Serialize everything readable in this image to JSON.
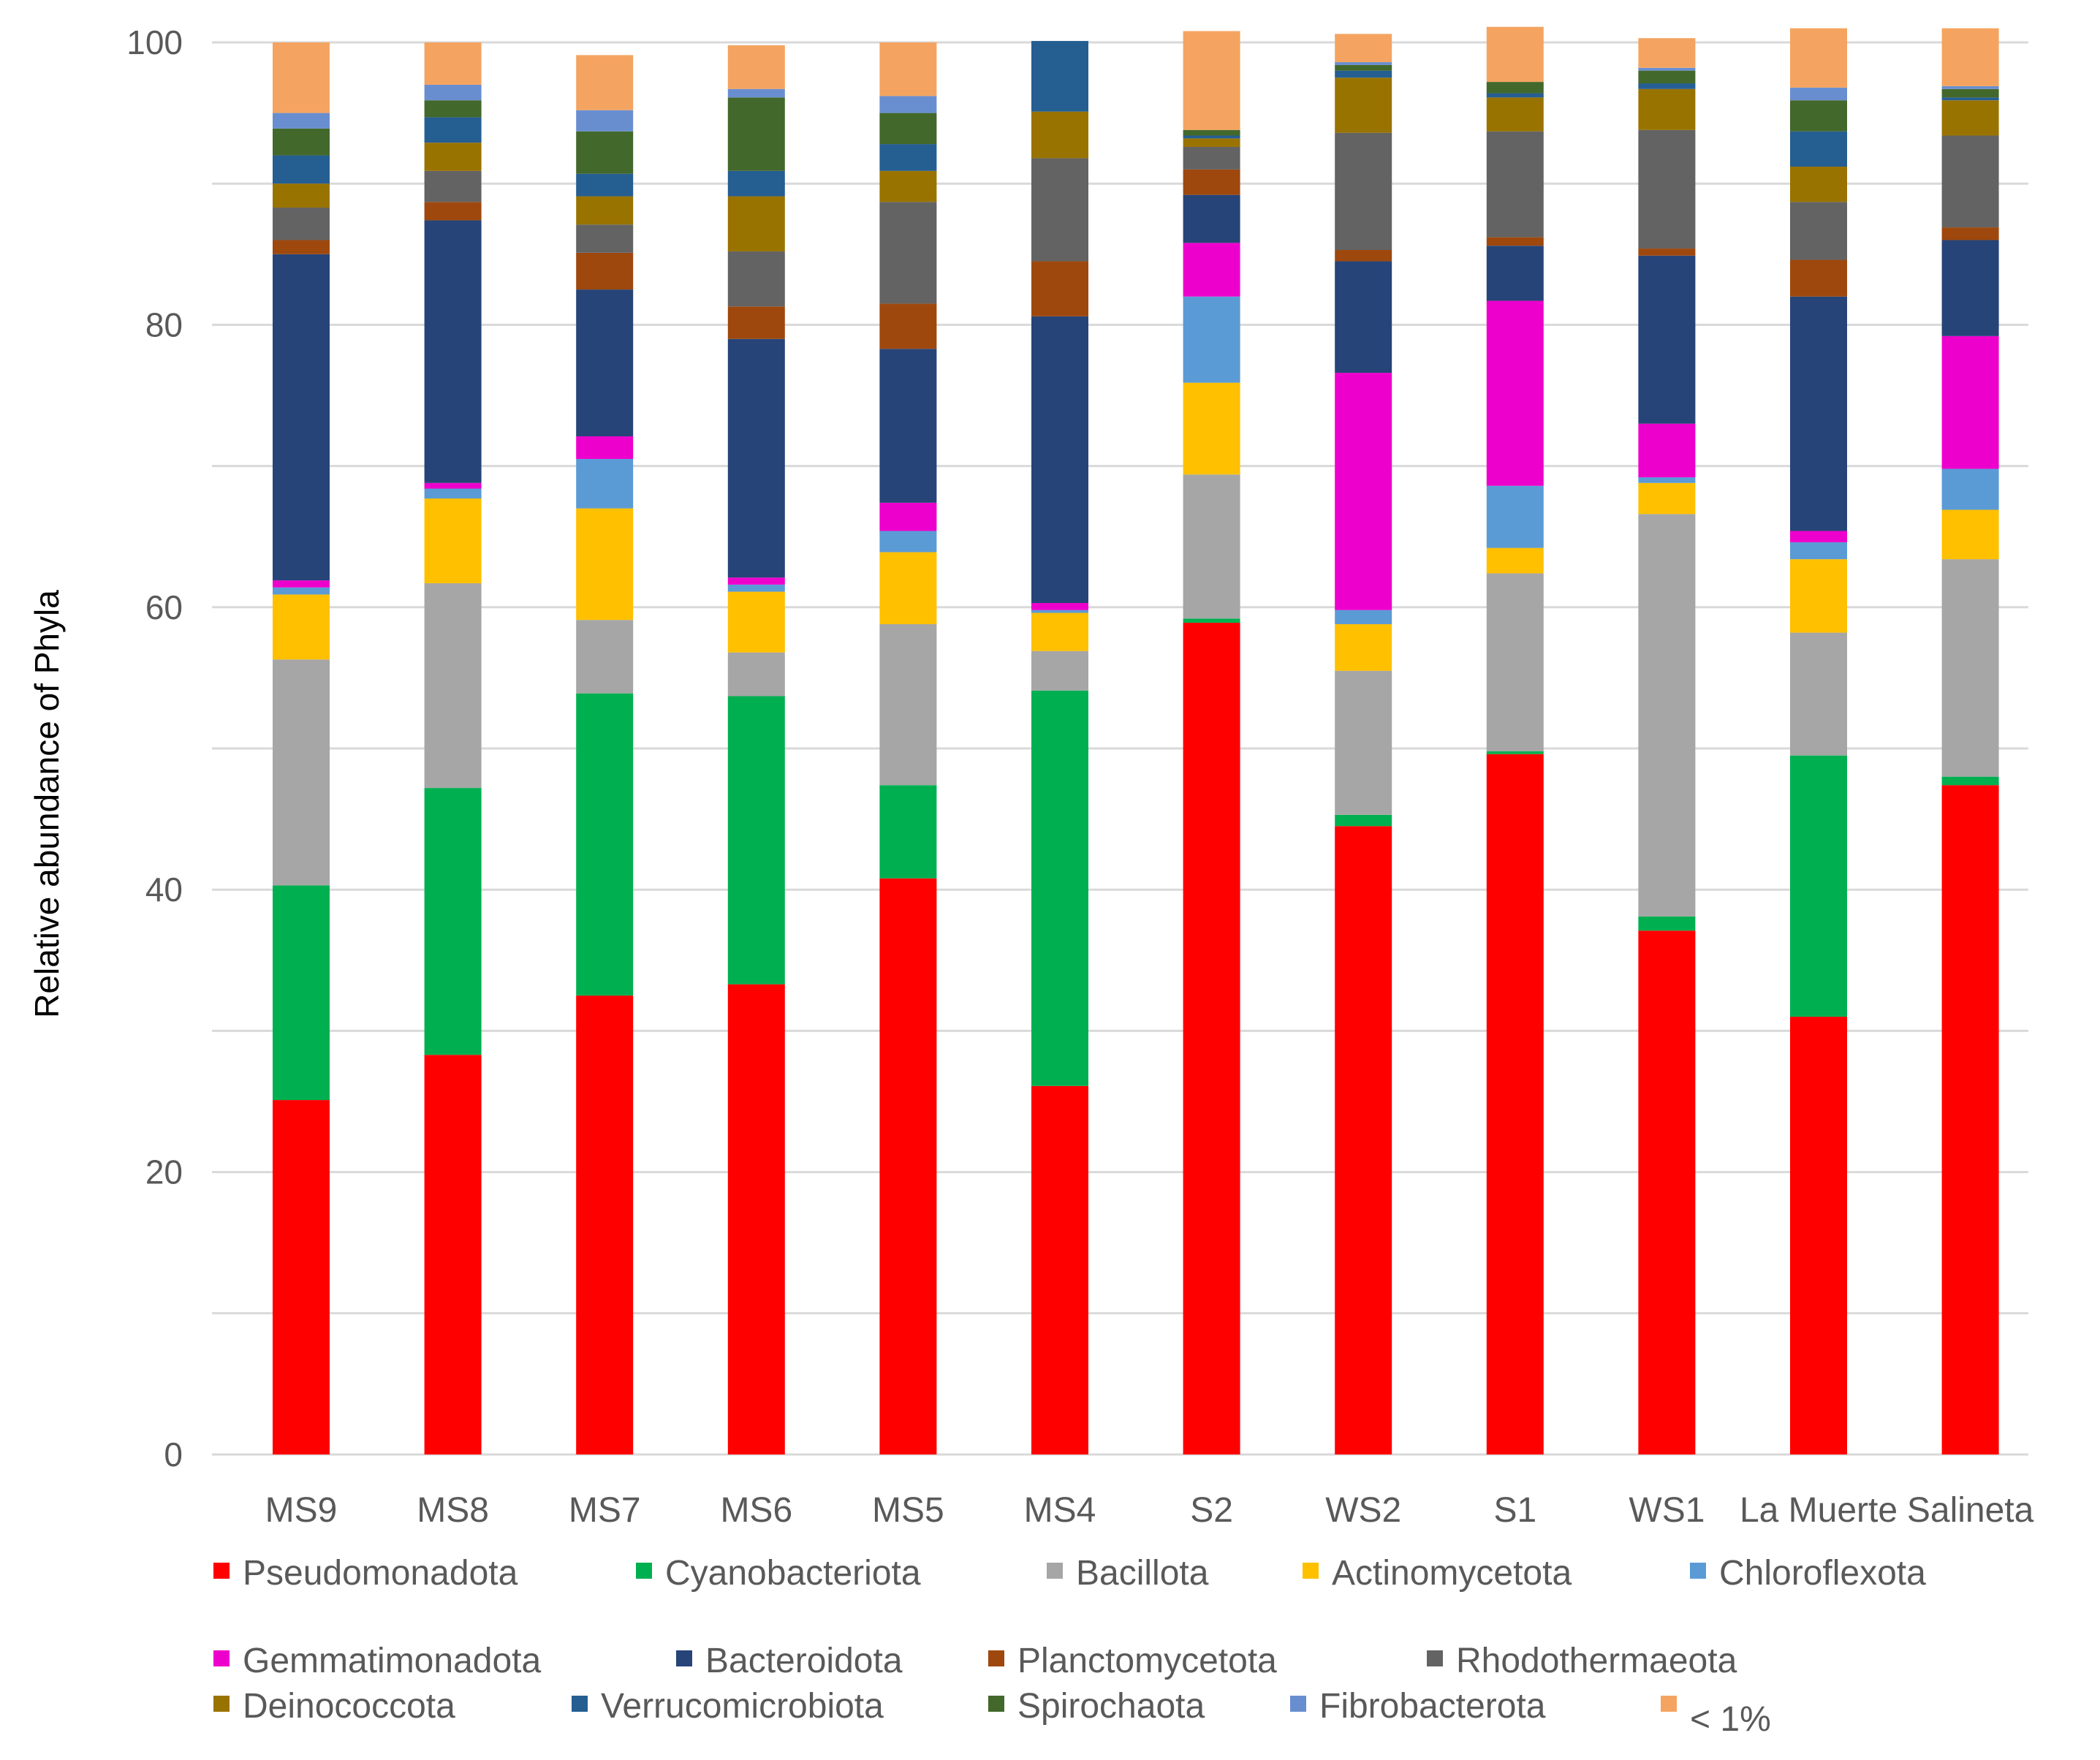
{
  "chart_data": {
    "type": "stacked-bar",
    "title": "",
    "xlabel": "",
    "ylabel": "Relative abundance of Phyla",
    "ylim": [
      0,
      100
    ],
    "yticks": [
      0,
      20,
      40,
      60,
      80,
      100
    ],
    "grid": true,
    "legend_position": "bottom",
    "categories": [
      "MS9",
      "MS8",
      "MS7",
      "MS6",
      "MS5",
      "MS4",
      "S2",
      "WS2",
      "S1",
      "WS1",
      "La Muerte",
      "Salineta"
    ],
    "series": [
      {
        "name": "Pseudomonadota",
        "color": "#ff0000",
        "values": [
          25.1,
          28.3,
          32.5,
          33.3,
          40.8,
          26.1,
          58.9,
          44.5,
          49.6,
          37.1,
          31.0,
          47.4
        ]
      },
      {
        "name": "Cyanobacteriota",
        "color": "#00b050",
        "values": [
          15.2,
          18.9,
          21.4,
          20.4,
          6.6,
          28.0,
          0.3,
          0.8,
          0.2,
          1.0,
          18.5,
          0.6
        ]
      },
      {
        "name": "Bacillota",
        "color": "#a6a6a6",
        "values": [
          16.0,
          14.5,
          5.2,
          3.1,
          11.4,
          2.8,
          10.2,
          10.2,
          12.6,
          28.5,
          8.7,
          15.4
        ]
      },
      {
        "name": "Actinomycetota",
        "color": "#ffc000",
        "values": [
          4.6,
          6.0,
          7.9,
          4.3,
          5.1,
          2.7,
          6.5,
          3.3,
          1.8,
          2.2,
          5.2,
          3.5
        ]
      },
      {
        "name": "Chloroflexota",
        "color": "#5b9bd5",
        "values": [
          0.5,
          0.7,
          3.5,
          0.5,
          1.5,
          0.2,
          6.1,
          1.0,
          4.4,
          0.4,
          1.2,
          2.9
        ]
      },
      {
        "name": "Gemmatimonadota",
        "color": "#ee00cc",
        "values": [
          0.5,
          0.4,
          1.6,
          0.5,
          2.0,
          0.5,
          3.8,
          16.8,
          13.1,
          3.8,
          0.8,
          9.4
        ]
      },
      {
        "name": "Bacteroidota",
        "color": "#264478",
        "values": [
          23.1,
          18.6,
          10.4,
          16.9,
          10.9,
          20.3,
          3.4,
          7.9,
          3.9,
          11.9,
          16.6,
          6.8
        ]
      },
      {
        "name": "Planctomycetota",
        "color": "#9e480e",
        "values": [
          1.0,
          1.3,
          2.6,
          2.3,
          3.2,
          3.9,
          1.8,
          0.8,
          0.6,
          0.5,
          2.6,
          0.9
        ]
      },
      {
        "name": "Rhodothermaeota",
        "color": "#636363",
        "values": [
          2.3,
          2.2,
          2.0,
          3.9,
          7.2,
          7.3,
          1.6,
          8.3,
          7.5,
          8.4,
          4.1,
          6.5
        ]
      },
      {
        "name": "Deinococcota",
        "color": "#997300",
        "values": [
          1.7,
          2.0,
          2.0,
          3.9,
          2.2,
          3.3,
          0.6,
          3.9,
          2.4,
          2.9,
          2.5,
          2.5
        ]
      },
      {
        "name": "Verrucomicrobiota",
        "color": "#255e91",
        "values": [
          2.0,
          1.8,
          1.6,
          1.8,
          1.9,
          5.0,
          0.2,
          0.5,
          0.3,
          0.4,
          2.5,
          0.2
        ]
      },
      {
        "name": "Spirochaota",
        "color": "#43682b",
        "values": [
          1.9,
          1.2,
          3.0,
          5.2,
          2.2,
          0.0,
          0.4,
          0.4,
          0.8,
          0.9,
          2.2,
          0.6
        ]
      },
      {
        "name": "Fibrobacterota",
        "color": "#698ed0",
        "values": [
          1.1,
          1.1,
          1.5,
          0.6,
          1.2,
          0.0,
          0.0,
          0.2,
          0.0,
          0.2,
          0.9,
          0.2
        ]
      },
      {
        "name": "< 1%",
        "color": "#f4a460",
        "values": [
          5.0,
          3.0,
          3.9,
          3.1,
          3.8,
          0.0,
          7.0,
          2.0,
          3.9,
          2.1,
          4.2,
          4.1
        ]
      }
    ]
  }
}
